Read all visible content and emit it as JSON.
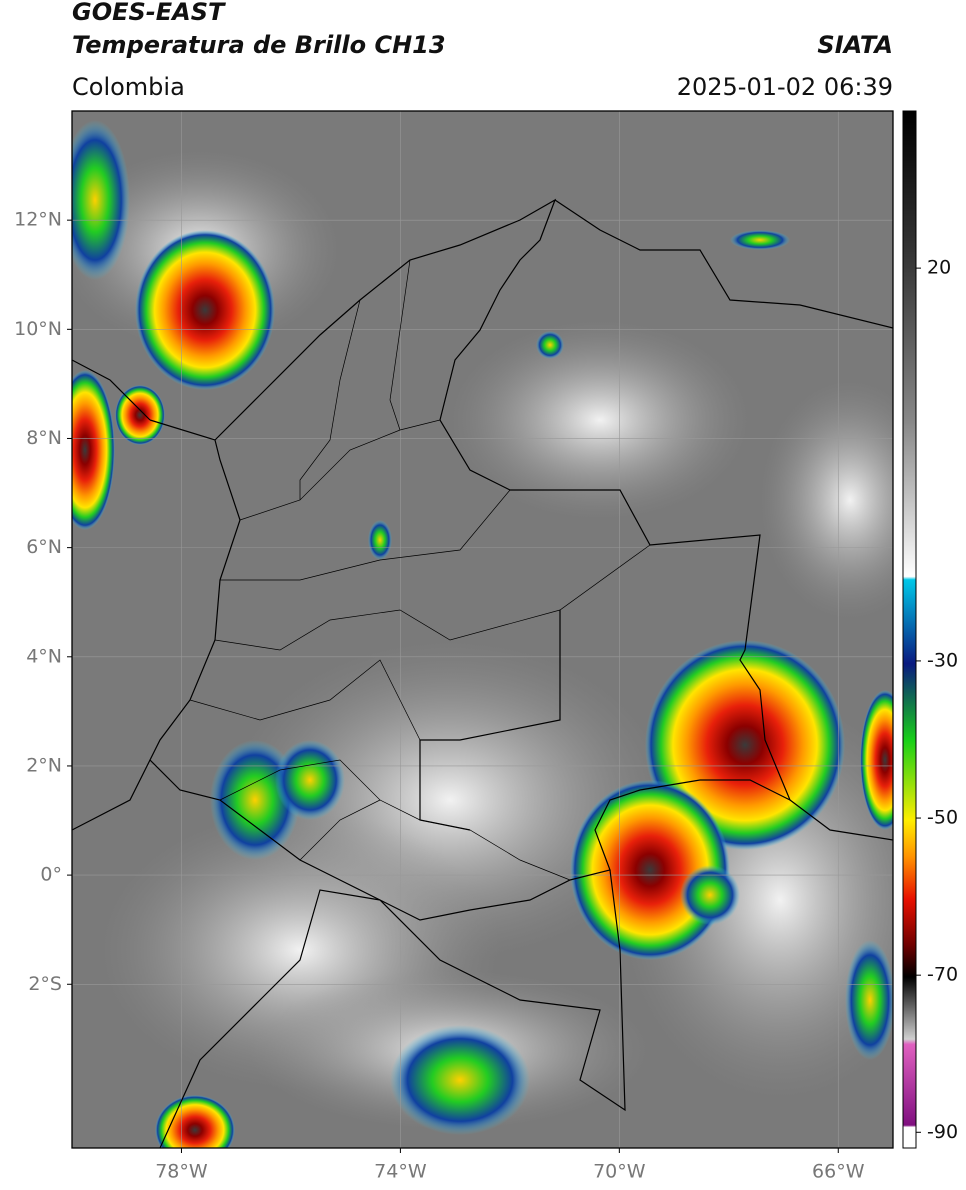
{
  "header": {
    "title": "GOES-EAST",
    "subtitle": "Temperatura de Brillo CH13",
    "region": "Colombia",
    "source": "SIATA",
    "datetime": "2025-01-02 06:39"
  },
  "map": {
    "xlim": [
      -80,
      -65
    ],
    "ylim": [
      -5,
      14
    ],
    "xticks": [
      {
        "value": -78,
        "label": "78°W"
      },
      {
        "value": -74,
        "label": "74°W"
      },
      {
        "value": -70,
        "label": "70°W"
      },
      {
        "value": -66,
        "label": "66°W"
      }
    ],
    "yticks": [
      {
        "value": -2,
        "label": "2°S"
      },
      {
        "value": 0,
        "label": "0°"
      },
      {
        "value": 2,
        "label": "2°N"
      },
      {
        "value": 4,
        "label": "4°N"
      },
      {
        "value": 6,
        "label": "6°N"
      },
      {
        "value": 8,
        "label": "8°N"
      },
      {
        "value": 10,
        "label": "10°N"
      },
      {
        "value": 12,
        "label": "12°N"
      }
    ],
    "grid": true
  },
  "colorbar": {
    "lim": [
      40,
      -92
    ],
    "ticks": [
      20,
      -30,
      -50,
      -70,
      -90
    ]
  }
}
